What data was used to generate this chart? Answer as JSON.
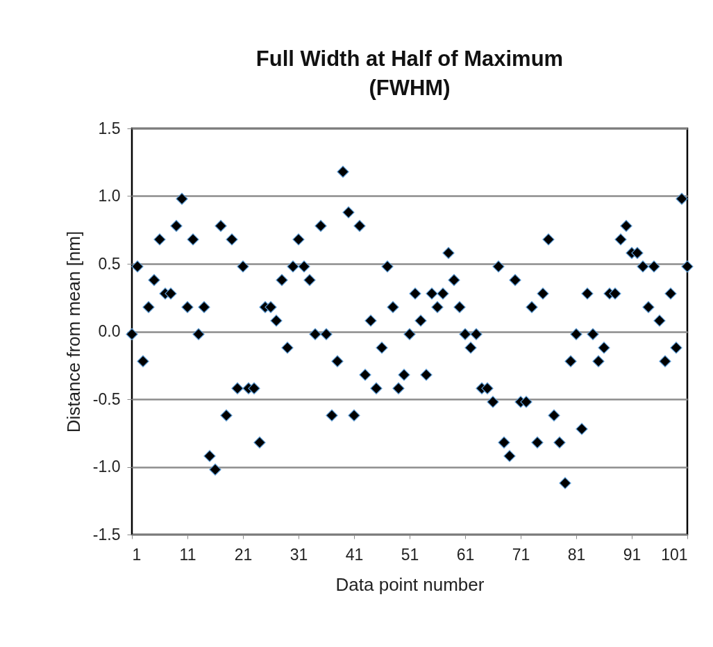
{
  "chart_data": {
    "type": "scatter",
    "title": "Full Width at Half of Maximum\n(FWHM)",
    "xlabel": "Data point number",
    "ylabel": "Distance from mean [nm]",
    "x": [
      1,
      2,
      3,
      4,
      5,
      6,
      7,
      8,
      9,
      10,
      11,
      12,
      13,
      14,
      15,
      16,
      17,
      18,
      19,
      20,
      21,
      22,
      23,
      24,
      25,
      26,
      27,
      28,
      29,
      30,
      31,
      32,
      33,
      34,
      35,
      36,
      37,
      38,
      39,
      40,
      41,
      42,
      43,
      44,
      45,
      46,
      47,
      48,
      49,
      50,
      51,
      52,
      53,
      54,
      55,
      56,
      57,
      58,
      59,
      60,
      61,
      62,
      63,
      64,
      65,
      66,
      67,
      68,
      69,
      70,
      71,
      72,
      73,
      74,
      75,
      76,
      77,
      78,
      79,
      80,
      81,
      82,
      83,
      84,
      85,
      86,
      87,
      88,
      89,
      90,
      91,
      92,
      93,
      94,
      95,
      96,
      97,
      98,
      99,
      100,
      101
    ],
    "series": [
      {
        "color": "#000000",
        "values": [
          -0.02,
          0.48,
          -0.22,
          0.18,
          0.38,
          0.68,
          0.28,
          0.28,
          0.78,
          0.98,
          0.18,
          0.68,
          -0.02,
          0.18,
          -0.92,
          -1.02,
          0.78,
          -0.62,
          0.68,
          -0.42,
          0.48,
          -0.42,
          -0.42,
          -0.82,
          0.18,
          0.18,
          0.08,
          0.38,
          -0.12,
          0.48,
          0.68,
          0.48,
          0.38,
          -0.02,
          0.78,
          -0.02,
          -0.62,
          -0.22,
          1.18,
          0.88,
          -0.62,
          0.78,
          -0.32,
          0.08,
          -0.42,
          -0.12,
          0.48,
          0.18,
          -0.42,
          -0.32,
          -0.02,
          0.28,
          0.08,
          -0.32,
          0.28,
          0.18,
          0.28,
          0.58,
          0.38,
          0.18,
          -0.02,
          -0.12,
          -0.02,
          -0.42,
          -0.42,
          -0.52,
          0.48,
          -0.82,
          -0.92,
          0.38,
          -0.52,
          -0.52,
          0.18,
          -0.82,
          0.28,
          0.68,
          -0.62,
          -0.82,
          -1.12,
          -0.22,
          -0.02,
          -0.72,
          0.28,
          -0.02,
          -0.22,
          -0.12,
          0.28,
          0.28,
          0.68,
          0.78,
          0.58,
          0.58,
          0.48,
          0.18,
          0.48,
          0.08,
          -0.22,
          0.28,
          -0.12,
          0.98,
          0.48
        ]
      }
    ],
    "xlim": [
      1,
      101
    ],
    "xticks": [
      1,
      11,
      21,
      31,
      41,
      51,
      61,
      71,
      81,
      91,
      101
    ],
    "ylim": [
      -1.5,
      1.5
    ],
    "yticks": [
      {
        "value": -1.5,
        "label": "-1.5"
      },
      {
        "value": -1,
        "label": "-1.0"
      },
      {
        "value": -0.5,
        "label": "-0.5"
      },
      {
        "value": 0,
        "label": "0.0"
      },
      {
        "value": 0.5,
        "label": "0.5"
      },
      {
        "value": 1,
        "label": "1.0"
      },
      {
        "value": 1.5,
        "label": "1.5"
      }
    ],
    "grid": "y",
    "marker": "diamond"
  }
}
